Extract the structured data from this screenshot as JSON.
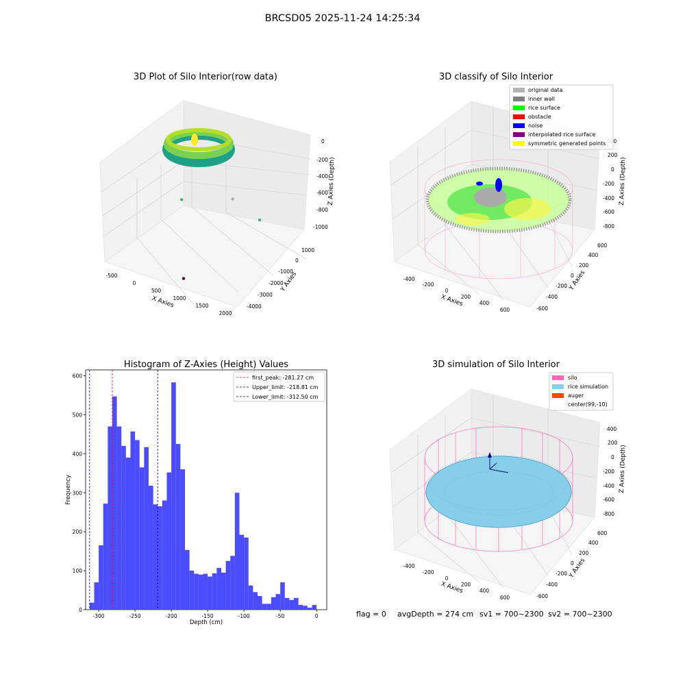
{
  "suptitle": "BRCSD05 2025-11-24 14:25:34",
  "footer": {
    "flag": "flag = 0",
    "avg_depth": "avgDepth = 274 cm",
    "sv1": "sv1 = 700~2300",
    "sv2": "sv2 = 700~2300"
  },
  "colors": {
    "hist_bar": "#4c4cff",
    "first_peak": "#ff0000",
    "limits": "#0000cc",
    "original": "#b3b3b3",
    "inner_wall": "#808080",
    "rice_surface": "#00ff00",
    "obstacle": "#ff0000",
    "noise": "#0000ff",
    "interpolated": "#800080",
    "symmetric": "#ffff00",
    "silo": "#ff69b4",
    "rice_sim": "#87ceeb",
    "auger": "#ff4500"
  },
  "chart_data": [
    {
      "type": "scatter3d",
      "title": "3D Plot of Silo Interior(row data)",
      "xlabel": "X Axies",
      "ylabel": "Y Axies",
      "zlabel": "Z Axies (Depth)",
      "x_ticks": [
        "-500",
        "0",
        "500",
        "1000",
        "1500",
        "2000"
      ],
      "y_ticks": [
        "1000",
        "0",
        "-1000",
        "-2000",
        "-3000",
        "-4000"
      ],
      "z_ticks": [
        "0",
        "-200",
        "-400",
        "-600",
        "-800",
        "-1000"
      ],
      "xlim": [
        -650,
        2050
      ],
      "ylim": [
        -4300,
        1600
      ],
      "zlim": [
        -1050,
        50
      ],
      "outlier_points": [
        {
          "x": 850,
          "y": -3900,
          "z": -1000,
          "color": "#440154"
        },
        {
          "x": 100,
          "y": -1300,
          "z": -540,
          "color": "#35b779"
        },
        {
          "x": 1450,
          "y": -400,
          "z": -610,
          "color": "#3aaf80"
        },
        {
          "x": 900,
          "y": -400,
          "z": -480,
          "color": "#a3b8a8"
        }
      ]
    },
    {
      "type": "scatter3d",
      "title": "3D classify of Silo Interior",
      "xlabel": "X Axies",
      "ylabel": "Y Axies",
      "zlabel": "Z Axies (Depth)",
      "x_ticks": [
        "-400",
        "-200",
        "0",
        "200",
        "400",
        "600"
      ],
      "y_ticks": [
        "600",
        "400",
        "200",
        "0",
        "-200",
        "-400",
        "-600"
      ],
      "z_ticks": [
        "400",
        "200",
        "0",
        "-200",
        "-400",
        "-600",
        "-800"
      ],
      "legend": [
        "original data",
        "inner wall",
        "rice surface",
        "obstacle",
        "noise",
        "interpolated rice surface",
        "symmetric generated points"
      ],
      "legend_position": "upper right"
    },
    {
      "type": "bar",
      "title": "Histogram of Z-Axies (Height) Values",
      "xlabel": "Depth (cm)",
      "ylabel": "Frequency",
      "bin_start": -312.5,
      "bin_width": 6.25,
      "values": [
        18,
        70,
        165,
        272,
        470,
        547,
        470,
        420,
        390,
        457,
        435,
        365,
        417,
        318,
        270,
        265,
        280,
        352,
        583,
        425,
        360,
        153,
        100,
        92,
        90,
        92,
        85,
        93,
        107,
        95,
        125,
        138,
        300,
        192,
        185,
        62,
        45,
        35,
        15,
        15,
        32,
        40,
        70,
        30,
        25,
        30,
        12,
        10,
        5,
        12
      ],
      "xlim": [
        -318,
        14
      ],
      "ylim": [
        0,
        615
      ],
      "x_ticks": [
        -300,
        -250,
        -200,
        -150,
        -100,
        -50,
        0
      ],
      "y_ticks": [
        0,
        100,
        200,
        300,
        400,
        500,
        600
      ],
      "vlines": [
        {
          "label": "first_peak: -281.27 cm",
          "x": -281.27,
          "color": "#ff0000"
        },
        {
          "label": "Upper_limit: -218.81 cm",
          "x": -218.81,
          "color": "#0000cc"
        },
        {
          "label": "Lower_limit: -312.50 cm",
          "x": -312.5,
          "color": "#0000cc"
        }
      ],
      "legend_position": "upper right"
    },
    {
      "type": "surface3d",
      "title": "3D simulation of Silo Interior",
      "xlabel": "X Axies",
      "ylabel": "Y Axies",
      "zlabel": "Z Axies (Depth)",
      "x_ticks": [
        "-400",
        "-200",
        "0",
        "200",
        "400",
        "600"
      ],
      "y_ticks": [
        "600",
        "400",
        "200",
        "0",
        "-200",
        "-400",
        "-600"
      ],
      "z_ticks": [
        "400",
        "200",
        "0",
        "-200",
        "-400",
        "-600",
        "-800"
      ],
      "legend": [
        "silo",
        "rice simulation",
        "auger",
        "center(99,-10)"
      ],
      "legend_position": "upper right"
    }
  ]
}
